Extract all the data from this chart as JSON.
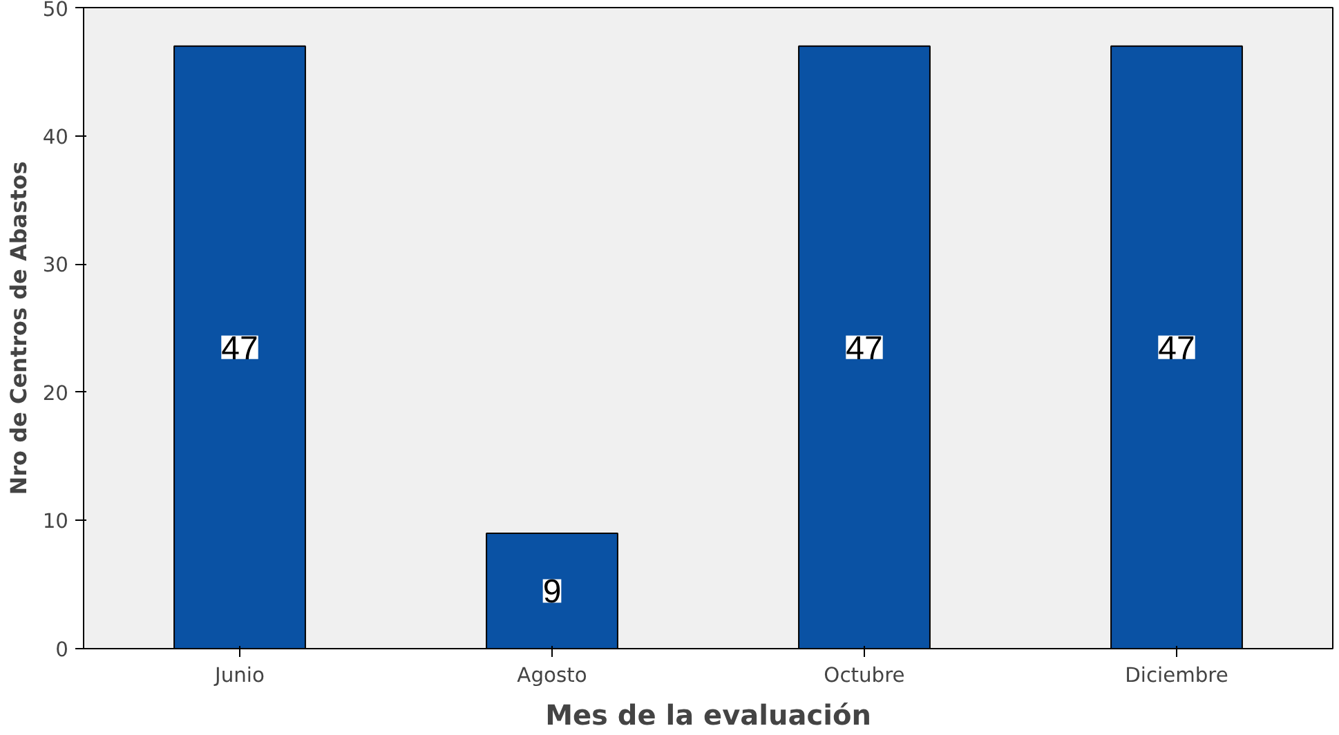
{
  "chart_data": {
    "type": "bar",
    "xlabel": "Mes de la evaluación",
    "ylabel": "Nro de Centros de Abastos",
    "categories": [
      "Junio",
      "Agosto",
      "Octubre",
      "Diciembre"
    ],
    "values": [
      47,
      9,
      47,
      47
    ],
    "color": "#0a52a4",
    "ylim": [
      0,
      50
    ],
    "yticks": [
      0,
      10,
      20,
      30,
      40,
      50
    ],
    "grid": false,
    "data_labels": true
  }
}
